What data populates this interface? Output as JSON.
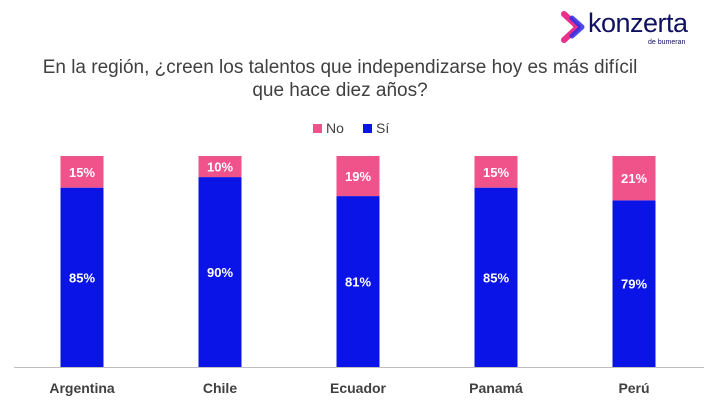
{
  "logo": {
    "name": "konzerta",
    "tagline": "de bumeran"
  },
  "chart_data": {
    "type": "bar",
    "stacked": true,
    "title": "En la región, ¿creen los talentos que independizarse hoy es más difícil que hace diez años?",
    "categories": [
      "Argentina",
      "Chile",
      "Ecuador",
      "Panamá",
      "Perú"
    ],
    "series": [
      {
        "name": "Sí",
        "values": [
          85,
          90,
          81,
          85,
          79
        ],
        "labels": [
          "85%",
          "90%",
          "81%",
          "85%",
          "79%"
        ],
        "color": "#0A14E6"
      },
      {
        "name": "No",
        "values": [
          15,
          10,
          19,
          15,
          21
        ],
        "labels": [
          "15%",
          "10%",
          "19%",
          "15%",
          "21%"
        ],
        "color": "#F0528A"
      }
    ],
    "legend_position": "top",
    "ylim": [
      0,
      100
    ],
    "grid": false
  },
  "colors": {
    "brand_dark": "#101060",
    "brand_pink": "#E8308C",
    "brand_blue": "#2D2BE8",
    "axis": "#bfbfbf"
  }
}
